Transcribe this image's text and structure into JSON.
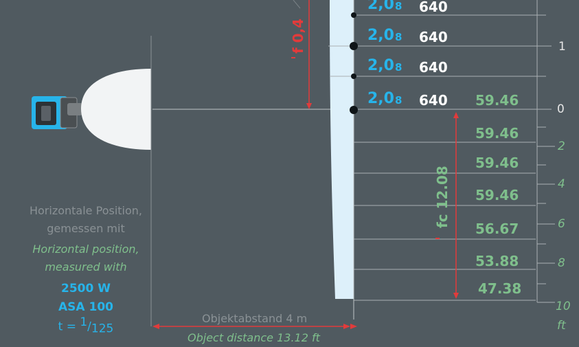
{
  "colors": {
    "background": "#505a60",
    "accent_blue": "#27b4ea",
    "accent_green": "#7fbf8c",
    "arrow_red": "#e23b3b",
    "gridline": "#aab0b3"
  },
  "icons": [
    "lamp-icon",
    "arrow-icon"
  ],
  "rows": [
    {
      "fstop": "2,0",
      "fstop_sub": "8",
      "lux": "640",
      "fc": ""
    },
    {
      "fstop": "2,0",
      "fstop_sub": "8",
      "lux": "640",
      "fc": ""
    },
    {
      "fstop": "2,0",
      "fstop_sub": "8",
      "lux": "640",
      "fc": ""
    },
    {
      "fstop": "2,0",
      "fstop_sub": "8",
      "lux": "640",
      "fc": "59.46"
    }
  ],
  "fc_rows": [
    "59.46",
    "59.46",
    "59.46",
    "56.67",
    "53.88",
    "47.38"
  ],
  "scale_m": [
    "1",
    "0"
  ],
  "scale_ft": [
    "2",
    "4",
    "6",
    "8",
    "10",
    "ft"
  ],
  "beam_m": "f 0,4",
  "beam_ft": "fc 12.08",
  "caption": {
    "de_line1": "Horizontale Position,",
    "de_line2": "gemessen mit",
    "en_line1": "Horizontal position,",
    "en_line2": "measured with",
    "watt": "2500 W",
    "asa": "ASA 100",
    "shutter_prefix": "t = ",
    "shutter_num": "1",
    "shutter_sep": "/",
    "shutter_den": "125"
  },
  "distance": {
    "de": "Objektabstand  4 m",
    "en": "Object distance 13.12 ft"
  }
}
